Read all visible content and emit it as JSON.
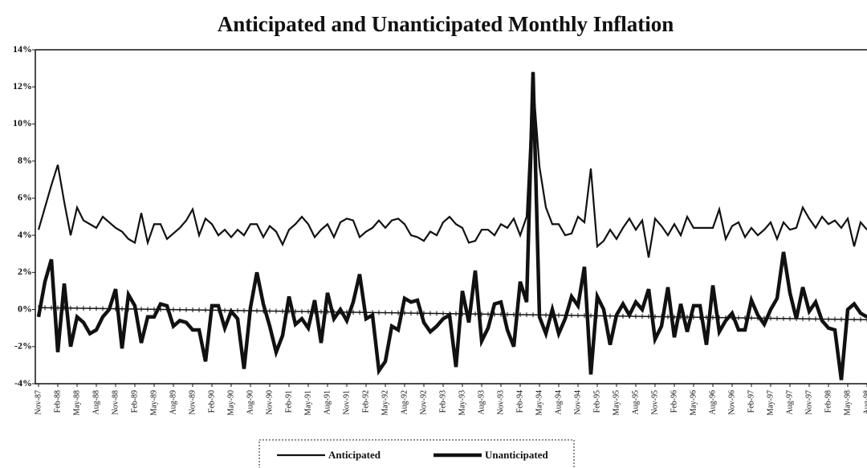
{
  "chart_data": {
    "type": "line",
    "title": "Anticipated and Unanticipated Monthly Inflation",
    "categories": [
      "Nov-87",
      null,
      null,
      "Feb-88",
      null,
      null,
      "May-88",
      null,
      null,
      "Aug-88",
      null,
      null,
      "Nov-88",
      null,
      null,
      "Feb-89",
      null,
      null,
      "May-89",
      null,
      null,
      "Aug-89",
      null,
      null,
      "Nov-89",
      null,
      null,
      "Feb-90",
      null,
      null,
      "May-90",
      null,
      null,
      "Aug-90",
      null,
      null,
      "Nov-90",
      null,
      null,
      "Feb-91",
      null,
      null,
      "May-91",
      null,
      null,
      "Aug-91",
      null,
      null,
      "Nov-91",
      null,
      null,
      "Feb-92",
      null,
      null,
      "May-92",
      null,
      null,
      "Aug-92",
      null,
      null,
      "Nov-92",
      null,
      null,
      "Feb-93",
      null,
      null,
      "May-93",
      null,
      null,
      "Aug-93",
      null,
      null,
      "Nov-93",
      null,
      null,
      "Feb-94",
      null,
      null,
      "May-94",
      null,
      null,
      "Aug-94",
      null,
      null,
      "Nov-94",
      null,
      null,
      "Feb-95",
      null,
      null,
      "May-95",
      null,
      null,
      "Aug-95",
      null,
      null,
      "Nov-95",
      null,
      null,
      "Feb-96",
      null,
      null,
      "May-96",
      null,
      null,
      "Aug-96",
      null,
      null,
      "Nov-96",
      null,
      null,
      "Feb-97",
      null,
      null,
      "May-97",
      null,
      null,
      "Aug-97",
      null,
      null,
      "Nov-97",
      null,
      null,
      "Feb-98",
      null,
      null,
      "May-98",
      null,
      null,
      "Aug-98"
    ],
    "series": [
      {
        "name": "Anticipated",
        "color": "#111111",
        "width": 2.2,
        "values": [
          4.3,
          5.5,
          6.7,
          7.8,
          5.8,
          4.0,
          5.5,
          4.8,
          4.6,
          4.4,
          5.0,
          4.7,
          4.4,
          4.2,
          3.8,
          3.6,
          5.2,
          3.6,
          4.6,
          4.6,
          3.8,
          4.1,
          4.4,
          4.8,
          5.4,
          4.0,
          4.9,
          4.6,
          4.0,
          4.3,
          3.9,
          4.3,
          4.0,
          4.6,
          4.6,
          3.9,
          4.5,
          4.2,
          3.5,
          4.3,
          4.6,
          5.0,
          4.6,
          3.9,
          4.3,
          4.6,
          3.9,
          4.7,
          4.9,
          4.8,
          3.9,
          4.2,
          4.4,
          4.8,
          4.4,
          4.8,
          4.9,
          4.6,
          4.0,
          3.9,
          3.7,
          4.2,
          4.0,
          4.7,
          5.0,
          4.6,
          4.4,
          3.6,
          3.7,
          4.3,
          4.3,
          4.0,
          4.6,
          4.4,
          4.9,
          4.0,
          5.0,
          12.3,
          7.7,
          5.5,
          4.6,
          4.6,
          4.0,
          4.1,
          5.0,
          4.7,
          7.6,
          3.4,
          3.7,
          4.3,
          3.8,
          4.4,
          4.9,
          4.3,
          4.8,
          2.8,
          4.9,
          4.5,
          4.0,
          4.6,
          4.0,
          5.0,
          4.4,
          4.4,
          4.4,
          4.4,
          5.4,
          3.8,
          4.5,
          4.7,
          3.9,
          4.4,
          4.0,
          4.3,
          4.7,
          3.8,
          4.7,
          4.3,
          4.4,
          5.5,
          4.9,
          4.4,
          5.0,
          4.6,
          4.8,
          4.4,
          4.9,
          3.4,
          4.7,
          4.3
        ]
      },
      {
        "name": "Unanticipated",
        "color": "#111111",
        "width": 4.5,
        "values": [
          -0.4,
          1.5,
          2.7,
          -2.3,
          1.4,
          -2.0,
          -0.4,
          -0.7,
          -1.3,
          -1.1,
          -0.4,
          0.0,
          1.1,
          -2.1,
          0.8,
          0.2,
          -1.8,
          -0.4,
          -0.4,
          0.3,
          0.2,
          -0.9,
          -0.6,
          -0.7,
          -1.1,
          -1.1,
          -2.8,
          0.2,
          0.2,
          -1.0,
          -0.1,
          -0.5,
          -3.2,
          0.1,
          2.0,
          0.3,
          -0.9,
          -2.3,
          -1.4,
          0.7,
          -0.8,
          -0.5,
          -1.0,
          0.5,
          -1.8,
          0.9,
          -0.5,
          0.0,
          -0.6,
          0.4,
          1.9,
          -0.5,
          -0.3,
          -3.3,
          -2.8,
          -0.9,
          -1.1,
          0.6,
          0.4,
          0.5,
          -0.7,
          -1.2,
          -0.9,
          -0.5,
          -0.3,
          -3.1,
          1.0,
          -0.7,
          2.1,
          -1.7,
          -1.0,
          0.3,
          0.4,
          -1.1,
          -2.0,
          1.5,
          0.4,
          12.8,
          -0.4,
          -1.3,
          0.0,
          -1.3,
          -0.5,
          0.7,
          0.2,
          2.3,
          -3.5,
          0.7,
          0.0,
          -1.9,
          -0.3,
          0.3,
          -0.3,
          0.4,
          0.0,
          1.1,
          -1.6,
          -0.9,
          1.2,
          -1.5,
          0.3,
          -1.2,
          0.2,
          0.2,
          -1.9,
          1.3,
          -1.2,
          -0.6,
          -0.2,
          -1.1,
          -1.1,
          0.5,
          -0.3,
          -0.8,
          0.0,
          0.6,
          3.1,
          0.9,
          -0.5,
          1.2,
          -0.1,
          0.4,
          -0.6,
          -1.0,
          -1.1,
          -3.8,
          0.0,
          0.3,
          -0.2,
          -0.4
        ]
      }
    ],
    "trendline": [
      0.1,
      -0.55
    ],
    "ylim": [
      -4,
      14
    ],
    "yticks": [
      {
        "value": -4,
        "label": "-4%"
      },
      {
        "value": -2,
        "label": "-2%"
      },
      {
        "value": 0,
        "label": "0%"
      },
      {
        "value": 2,
        "label": "2%"
      },
      {
        "value": 4,
        "label": "4%"
      },
      {
        "value": 6,
        "label": "6%"
      },
      {
        "value": 8,
        "label": "8%"
      },
      {
        "value": 10,
        "label": "10%"
      },
      {
        "value": 12,
        "label": "12%"
      },
      {
        "value": 14,
        "label": "14%"
      }
    ],
    "legend": "bottom"
  }
}
